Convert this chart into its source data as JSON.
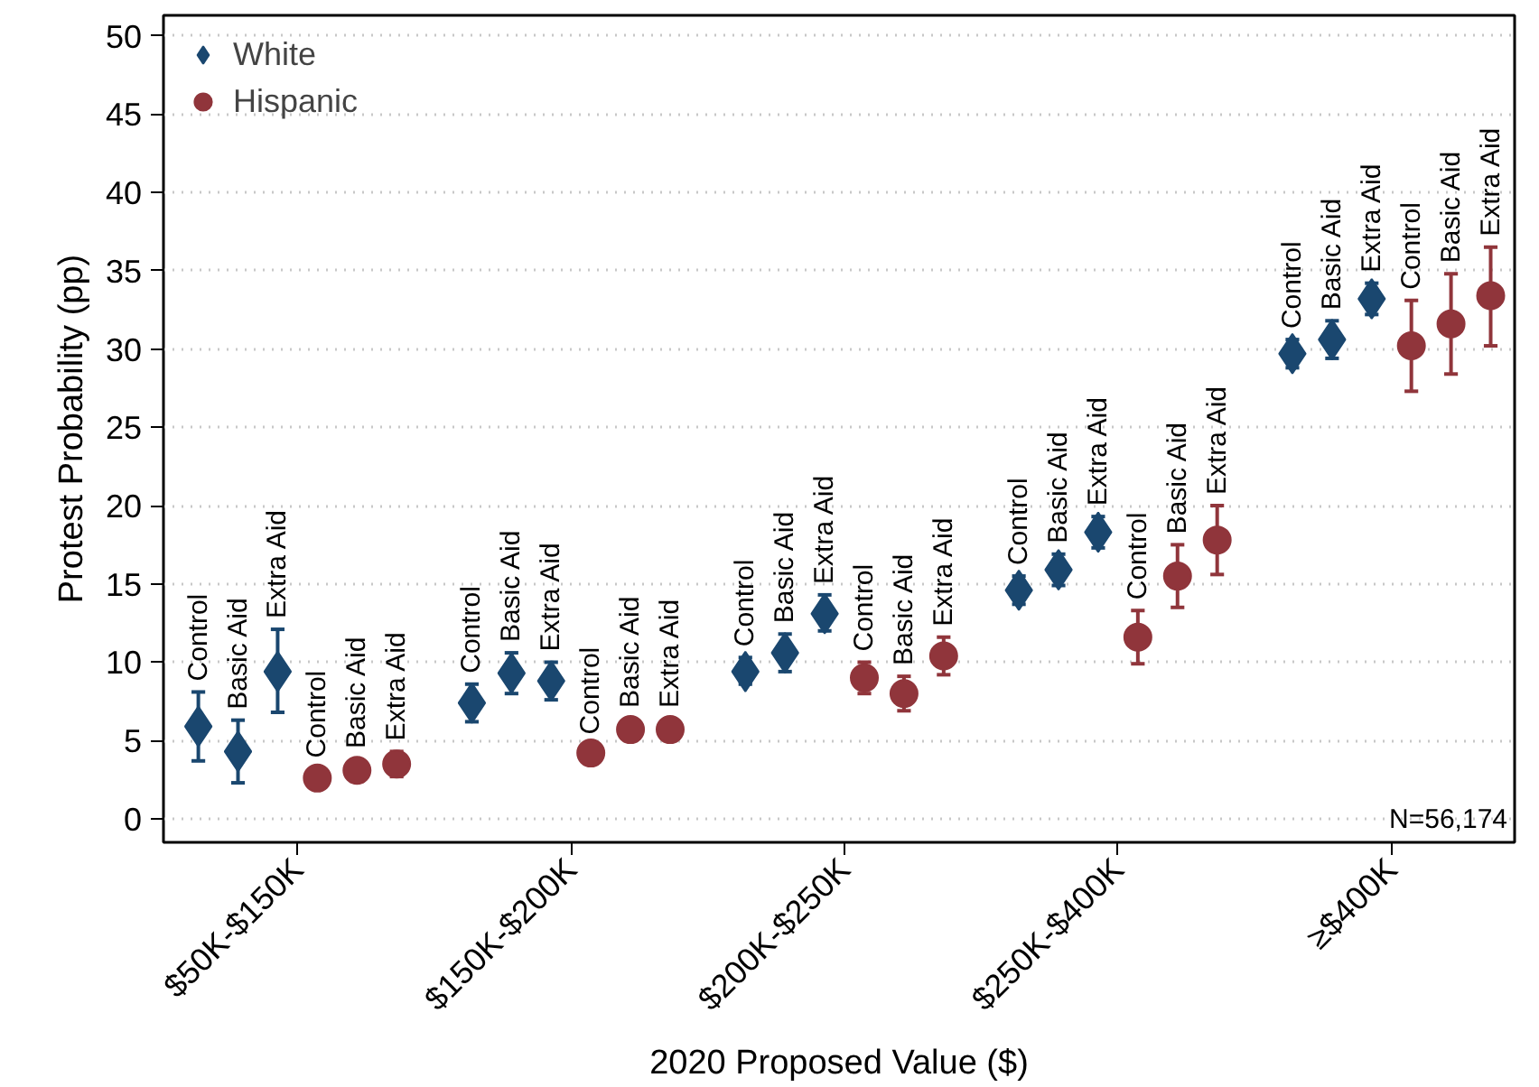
{
  "chart_data": {
    "type": "scatter",
    "xlabel": "2020 Proposed Value ($)",
    "ylabel": "Protest Probability (pp)",
    "categories": [
      "$50K-$150K",
      "$150K-$200K",
      "$200K-$250K",
      "$250K-$400K",
      "≥$400K"
    ],
    "ylim": [
      -1.5,
      51.3
    ],
    "yticks": [
      0,
      5,
      10,
      15,
      20,
      25,
      30,
      35,
      40,
      45,
      50
    ],
    "grid": "y",
    "legend": "top left",
    "series": [
      {
        "name": "White",
        "color": "#1a476f",
        "marker": "diamond",
        "x": [
          "$50K-$150K",
          "$50K-$150K",
          "$50K-$150K",
          "$150K-$200K",
          "$150K-$200K",
          "$150K-$200K",
          "$200K-$250K",
          "$200K-$250K",
          "$200K-$250K",
          "$250K-$400K",
          "$250K-$400K",
          "$250K-$400K",
          "≥$400K",
          "≥$400K",
          "≥$400K"
        ],
        "values": [
          5.9,
          4.3,
          9.4,
          7.4,
          9.3,
          8.8,
          9.4,
          10.6,
          13.1,
          14.6,
          15.9,
          18.3,
          29.7,
          30.6,
          33.2
        ],
        "errors": [
          [
            3.7,
            8.1
          ],
          [
            2.3,
            6.3
          ],
          [
            6.8,
            12.1
          ],
          [
            6.2,
            8.6
          ],
          [
            8.0,
            10.6
          ],
          [
            7.6,
            10.0
          ],
          [
            8.6,
            10.3
          ],
          [
            9.4,
            11.8
          ],
          [
            12.0,
            14.3
          ],
          [
            13.7,
            15.5
          ],
          [
            14.9,
            16.9
          ],
          [
            17.3,
            19.3
          ],
          [
            28.8,
            30.6
          ],
          [
            29.4,
            31.8
          ],
          [
            32.2,
            34.2
          ]
        ],
        "value_labels": [
          "Control",
          "Basic Aid",
          "Extra Aid",
          "Control",
          "Basic Aid",
          "Extra Aid",
          "Control",
          "Basic Aid",
          "Extra Aid",
          "Control",
          "Basic Aid",
          "Extra Aid",
          "Control",
          "Basic Aid",
          "Extra Aid"
        ]
      },
      {
        "name": "Hispanic",
        "color": "#90353b",
        "marker": "circle",
        "x": [
          "$50K-$150K",
          "$50K-$150K",
          "$50K-$150K",
          "$150K-$200K",
          "$150K-$200K",
          "$150K-$200K",
          "$200K-$250K",
          "$200K-$250K",
          "$200K-$250K",
          "$250K-$400K",
          "$250K-$400K",
          "$250K-$400K",
          "≥$400K",
          "≥$400K",
          "≥$400K"
        ],
        "values": [
          2.6,
          3.1,
          3.5,
          4.2,
          5.7,
          5.7,
          9.0,
          8.0,
          10.4,
          11.6,
          15.5,
          17.8,
          30.2,
          31.6,
          33.4
        ],
        "errors": [
          [
            2.0,
            3.2
          ],
          [
            2.4,
            3.8
          ],
          [
            2.7,
            4.3
          ],
          [
            3.7,
            4.7
          ],
          [
            5.0,
            6.4
          ],
          [
            5.0,
            6.4
          ],
          [
            8.0,
            10.0
          ],
          [
            6.9,
            9.1
          ],
          [
            9.2,
            11.6
          ],
          [
            9.9,
            13.3
          ],
          [
            13.5,
            17.5
          ],
          [
            15.6,
            20.0
          ],
          [
            27.3,
            33.1
          ],
          [
            28.4,
            34.8
          ],
          [
            30.2,
            36.5
          ]
        ],
        "value_labels": [
          "Control",
          "Basic Aid",
          "Extra Aid",
          "Control",
          "Basic Aid",
          "Extra Aid",
          "Control",
          "Basic Aid",
          "Extra Aid",
          "Control",
          "Basic Aid",
          "Extra Aid",
          "Control",
          "Basic Aid",
          "Extra Aid"
        ]
      }
    ],
    "annotations": [
      "N=56,174"
    ]
  }
}
